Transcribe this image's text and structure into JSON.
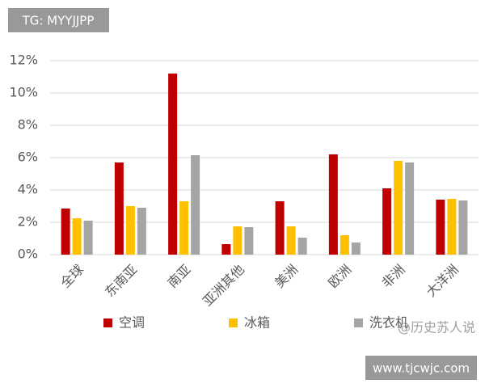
{
  "chart_data": {
    "type": "bar",
    "categories": [
      "全球",
      "东南亚",
      "南亚",
      "亚洲其他",
      "美洲",
      "欧洲",
      "非洲",
      "大洋洲"
    ],
    "series": [
      {
        "name": "空调",
        "color": "#c00000",
        "values": [
          2.85,
          5.7,
          11.2,
          0.65,
          3.3,
          6.2,
          4.1,
          3.4
        ]
      },
      {
        "name": "冰箱",
        "color": "#ffc000",
        "values": [
          2.25,
          3.0,
          3.3,
          1.75,
          1.75,
          1.2,
          5.8,
          3.45
        ]
      },
      {
        "name": "洗衣机",
        "color": "#a5a5a5",
        "values": [
          2.1,
          2.9,
          6.15,
          1.7,
          1.05,
          0.75,
          5.7,
          3.35
        ]
      }
    ],
    "ylim": [
      0,
      12
    ],
    "yticks": [
      {
        "value": 0,
        "label": "0%"
      },
      {
        "value": 2,
        "label": "2%"
      },
      {
        "value": 4,
        "label": "4%"
      },
      {
        "value": 6,
        "label": "6%"
      },
      {
        "value": 8,
        "label": "8%"
      },
      {
        "value": 10,
        "label": "10%"
      },
      {
        "value": 12,
        "label": "12%"
      }
    ],
    "grid": true,
    "annotations": [
      "TG: MYYJJPP",
      "@历史苏人说",
      "www.tjcwjc.com"
    ]
  }
}
